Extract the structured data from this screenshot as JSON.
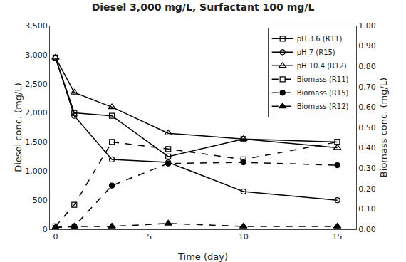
{
  "chart_data": {
    "type": "line",
    "title": "Diesel 3,000 mg/L, Surfactant 100 mg/L",
    "xlabel": "Time (day)",
    "ylabel": "Diesel conc. (mg/L)",
    "y2label": "Biomass conc. (mg/L)",
    "x": [
      0,
      1,
      3,
      6,
      10,
      15
    ],
    "xlim": [
      -0.3,
      16
    ],
    "xticks": [
      0,
      5,
      10,
      15
    ],
    "ylim": [
      0,
      3500
    ],
    "yticks": [
      0,
      500,
      {
        "value": 1000,
        "label": "1,000"
      },
      {
        "value": 1500,
        "label": "1,500"
      },
      {
        "value": 2000,
        "label": "2,000"
      },
      {
        "value": 2500,
        "label": "2,500"
      },
      {
        "value": 3000,
        "label": "3,000"
      },
      {
        "value": 3500,
        "label": "3,500"
      }
    ],
    "y2lim": [
      0,
      1
    ],
    "y2ticks": [
      {
        "value": 0,
        "label": "0.00"
      },
      {
        "value": 0.1,
        "label": "0.10"
      },
      {
        "value": 0.2,
        "label": "0.20"
      },
      {
        "value": 0.3,
        "label": "0.30"
      },
      {
        "value": 0.4,
        "label": "0.40"
      },
      {
        "value": 0.5,
        "label": "0.50"
      },
      {
        "value": 0.6,
        "label": "0.60"
      },
      {
        "value": 0.7,
        "label": "0.70"
      },
      {
        "value": 0.8,
        "label": "0.80"
      },
      {
        "value": 0.9,
        "label": "0.90"
      },
      {
        "value": 1,
        "label": "1.00"
      }
    ],
    "color": "#000000",
    "grid": false,
    "legend": "upper right",
    "series": [
      {
        "name": "pH 3.6 (R11)",
        "values": [
          2950,
          2000,
          1950,
          1250,
          1550,
          1500
        ],
        "marker": "square-open",
        "line_style": "solid"
      },
      {
        "name": "pH 7 (R15)",
        "values": [
          2950,
          1950,
          1200,
          1150,
          650,
          500
        ],
        "marker": "circle-open",
        "line_style": "solid"
      },
      {
        "name": "pH 10.4 (R12)",
        "values": [
          2950,
          2350,
          2100,
          1650,
          1550,
          1400
        ],
        "marker": "triangle-up-open",
        "line_style": "solid"
      },
      {
        "name": "Biomass (R11)",
        "values": [
          50,
          420,
          1500,
          1380,
          1200,
          1500
        ],
        "marker": "square-open",
        "line_style": "dashed"
      },
      {
        "name": "Biomass (R15)",
        "values": [
          30,
          50,
          750,
          1130,
          1150,
          1100
        ],
        "marker": "circle",
        "line_style": "dashed"
      },
      {
        "name": "Biomass (R12)",
        "values": [
          30,
          50,
          50,
          100,
          50,
          50
        ],
        "marker": "triangle-up",
        "line_style": "dashed"
      }
    ]
  }
}
